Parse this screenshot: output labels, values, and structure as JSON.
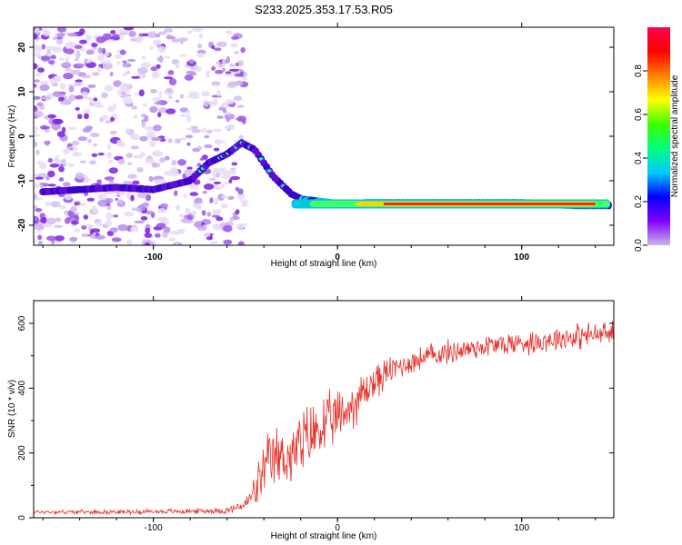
{
  "title": "S233.2025.353.17.53.R05",
  "chart_data": [
    {
      "type": "heatmap",
      "title": "S233.2025.353.17.53.R05",
      "xlabel": "Height of straight line (km)",
      "ylabel": "Frequency (Hz)",
      "xlim": [
        -165,
        150
      ],
      "ylim": [
        -24.5,
        24.5
      ],
      "xticks": [
        -100,
        0,
        100
      ],
      "yticks": [
        -20,
        -10,
        0,
        10,
        20
      ],
      "ridge": {
        "x": [
          -160,
          -140,
          -120,
          -100,
          -80,
          -70,
          -60,
          -52,
          -45,
          -40,
          -35,
          -30,
          -25,
          -20,
          -10,
          0,
          20,
          50,
          100,
          130,
          148
        ],
        "freq": [
          -12.5,
          -12,
          -11.5,
          -12,
          -10,
          -6,
          -4,
          -1.5,
          -3,
          -6,
          -9,
          -11,
          -13,
          -14,
          -14.5,
          -15,
          -15,
          -15,
          -15,
          -15.5,
          -15.5
        ]
      },
      "colorbar": {
        "label": "Normalized spectral amplitude",
        "range": [
          0,
          1
        ],
        "ticks": [
          "0.0",
          "0.2",
          "0.4",
          "0.6",
          "0.8"
        ],
        "stops": [
          "#c8b8e8",
          "#8000ff",
          "#0000ff",
          "#00c8ff",
          "#00ff80",
          "#40ff00",
          "#ffff00",
          "#ff8000",
          "#ff0000",
          "#ff0050"
        ]
      }
    },
    {
      "type": "line",
      "xlabel": "Height of straight line (km)",
      "ylabel": "SNR (10 * v/v)",
      "xlim": [
        -165,
        150
      ],
      "ylim": [
        0,
        670
      ],
      "xticks": [
        -100,
        0,
        100
      ],
      "yticks": [
        0,
        200,
        400,
        600
      ],
      "series": [
        {
          "name": "SNR",
          "color": "#e8302a",
          "x": [
            -165,
            -120,
            -80,
            -60,
            -50,
            -45,
            -40,
            -35,
            -30,
            -25,
            -20,
            -15,
            -10,
            -5,
            0,
            5,
            10,
            15,
            20,
            25,
            30,
            40,
            50,
            60,
            70,
            80,
            90,
            100,
            110,
            120,
            130,
            140,
            150
          ],
          "mean": [
            18,
            18,
            20,
            22,
            40,
            80,
            140,
            180,
            190,
            190,
            220,
            250,
            275,
            290,
            310,
            330,
            360,
            390,
            420,
            440,
            460,
            480,
            500,
            510,
            520,
            530,
            535,
            540,
            545,
            555,
            560,
            565,
            570
          ],
          "spread": [
            8,
            8,
            10,
            12,
            25,
            60,
            110,
            120,
            110,
            110,
            130,
            130,
            120,
            110,
            100,
            90,
            90,
            80,
            70,
            60,
            50,
            45,
            45,
            45,
            45,
            45,
            45,
            45,
            45,
            45,
            50,
            45,
            45
          ]
        }
      ]
    }
  ]
}
